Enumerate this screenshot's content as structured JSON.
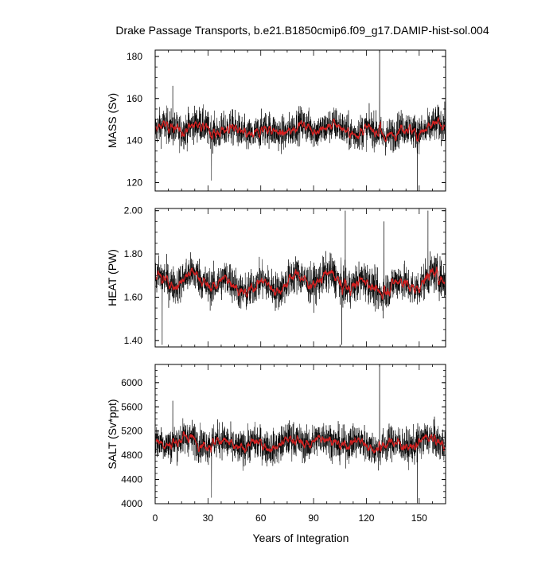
{
  "chart_data": {
    "type": "line",
    "title": "Drake Passage Transports, b.e21.B1850cmip6.f09_g17.DAMIP-hist-sol.004",
    "xlabel": "Years of Integration",
    "xlim": [
      0,
      165
    ],
    "xticks": [
      0,
      30,
      60,
      90,
      120,
      150
    ],
    "series_styles": {
      "raw": "#000000",
      "smoothed": "#d42020"
    },
    "panels": [
      {
        "ylabel": "MASS (Sv)",
        "ylim": [
          116,
          183
        ],
        "yticks": [
          120,
          140,
          160,
          180
        ],
        "ytick_labels": [
          "120",
          "140",
          "160",
          "180"
        ],
        "mean": 145,
        "spread": 9.5,
        "smooth_amp": 2.2,
        "spikes": [
          [
            127.5,
            183
          ],
          [
            149,
            116
          ],
          [
            10,
            166
          ],
          [
            32,
            121
          ]
        ]
      },
      {
        "ylabel": "HEAT (PW)",
        "ylim": [
          1.37,
          2.01
        ],
        "yticks": [
          1.4,
          1.6,
          1.8,
          2.0
        ],
        "ytick_labels": [
          "1.40",
          "1.60",
          "1.80",
          "2.00"
        ],
        "mean": 1.665,
        "spread": 0.1,
        "smooth_amp": 0.035,
        "spikes": [
          [
            108,
            2.0
          ],
          [
            155,
            2.0
          ],
          [
            130,
            1.95
          ],
          [
            4,
            1.38
          ],
          [
            106,
            1.38
          ]
        ]
      },
      {
        "ylabel": "SALT (Sv*ppt)",
        "ylim": [
          4000,
          6300
        ],
        "yticks": [
          4000,
          4400,
          4800,
          5200,
          5600,
          6000
        ],
        "ytick_labels": [
          "4000",
          "4400",
          "4800",
          "5200",
          "5600",
          "6000"
        ],
        "mean": 5000,
        "spread": 330,
        "smooth_amp": 75,
        "spikes": [
          [
            127.5,
            6300
          ],
          [
            149,
            4010
          ],
          [
            10,
            5700
          ],
          [
            32,
            4100
          ]
        ]
      }
    ]
  }
}
